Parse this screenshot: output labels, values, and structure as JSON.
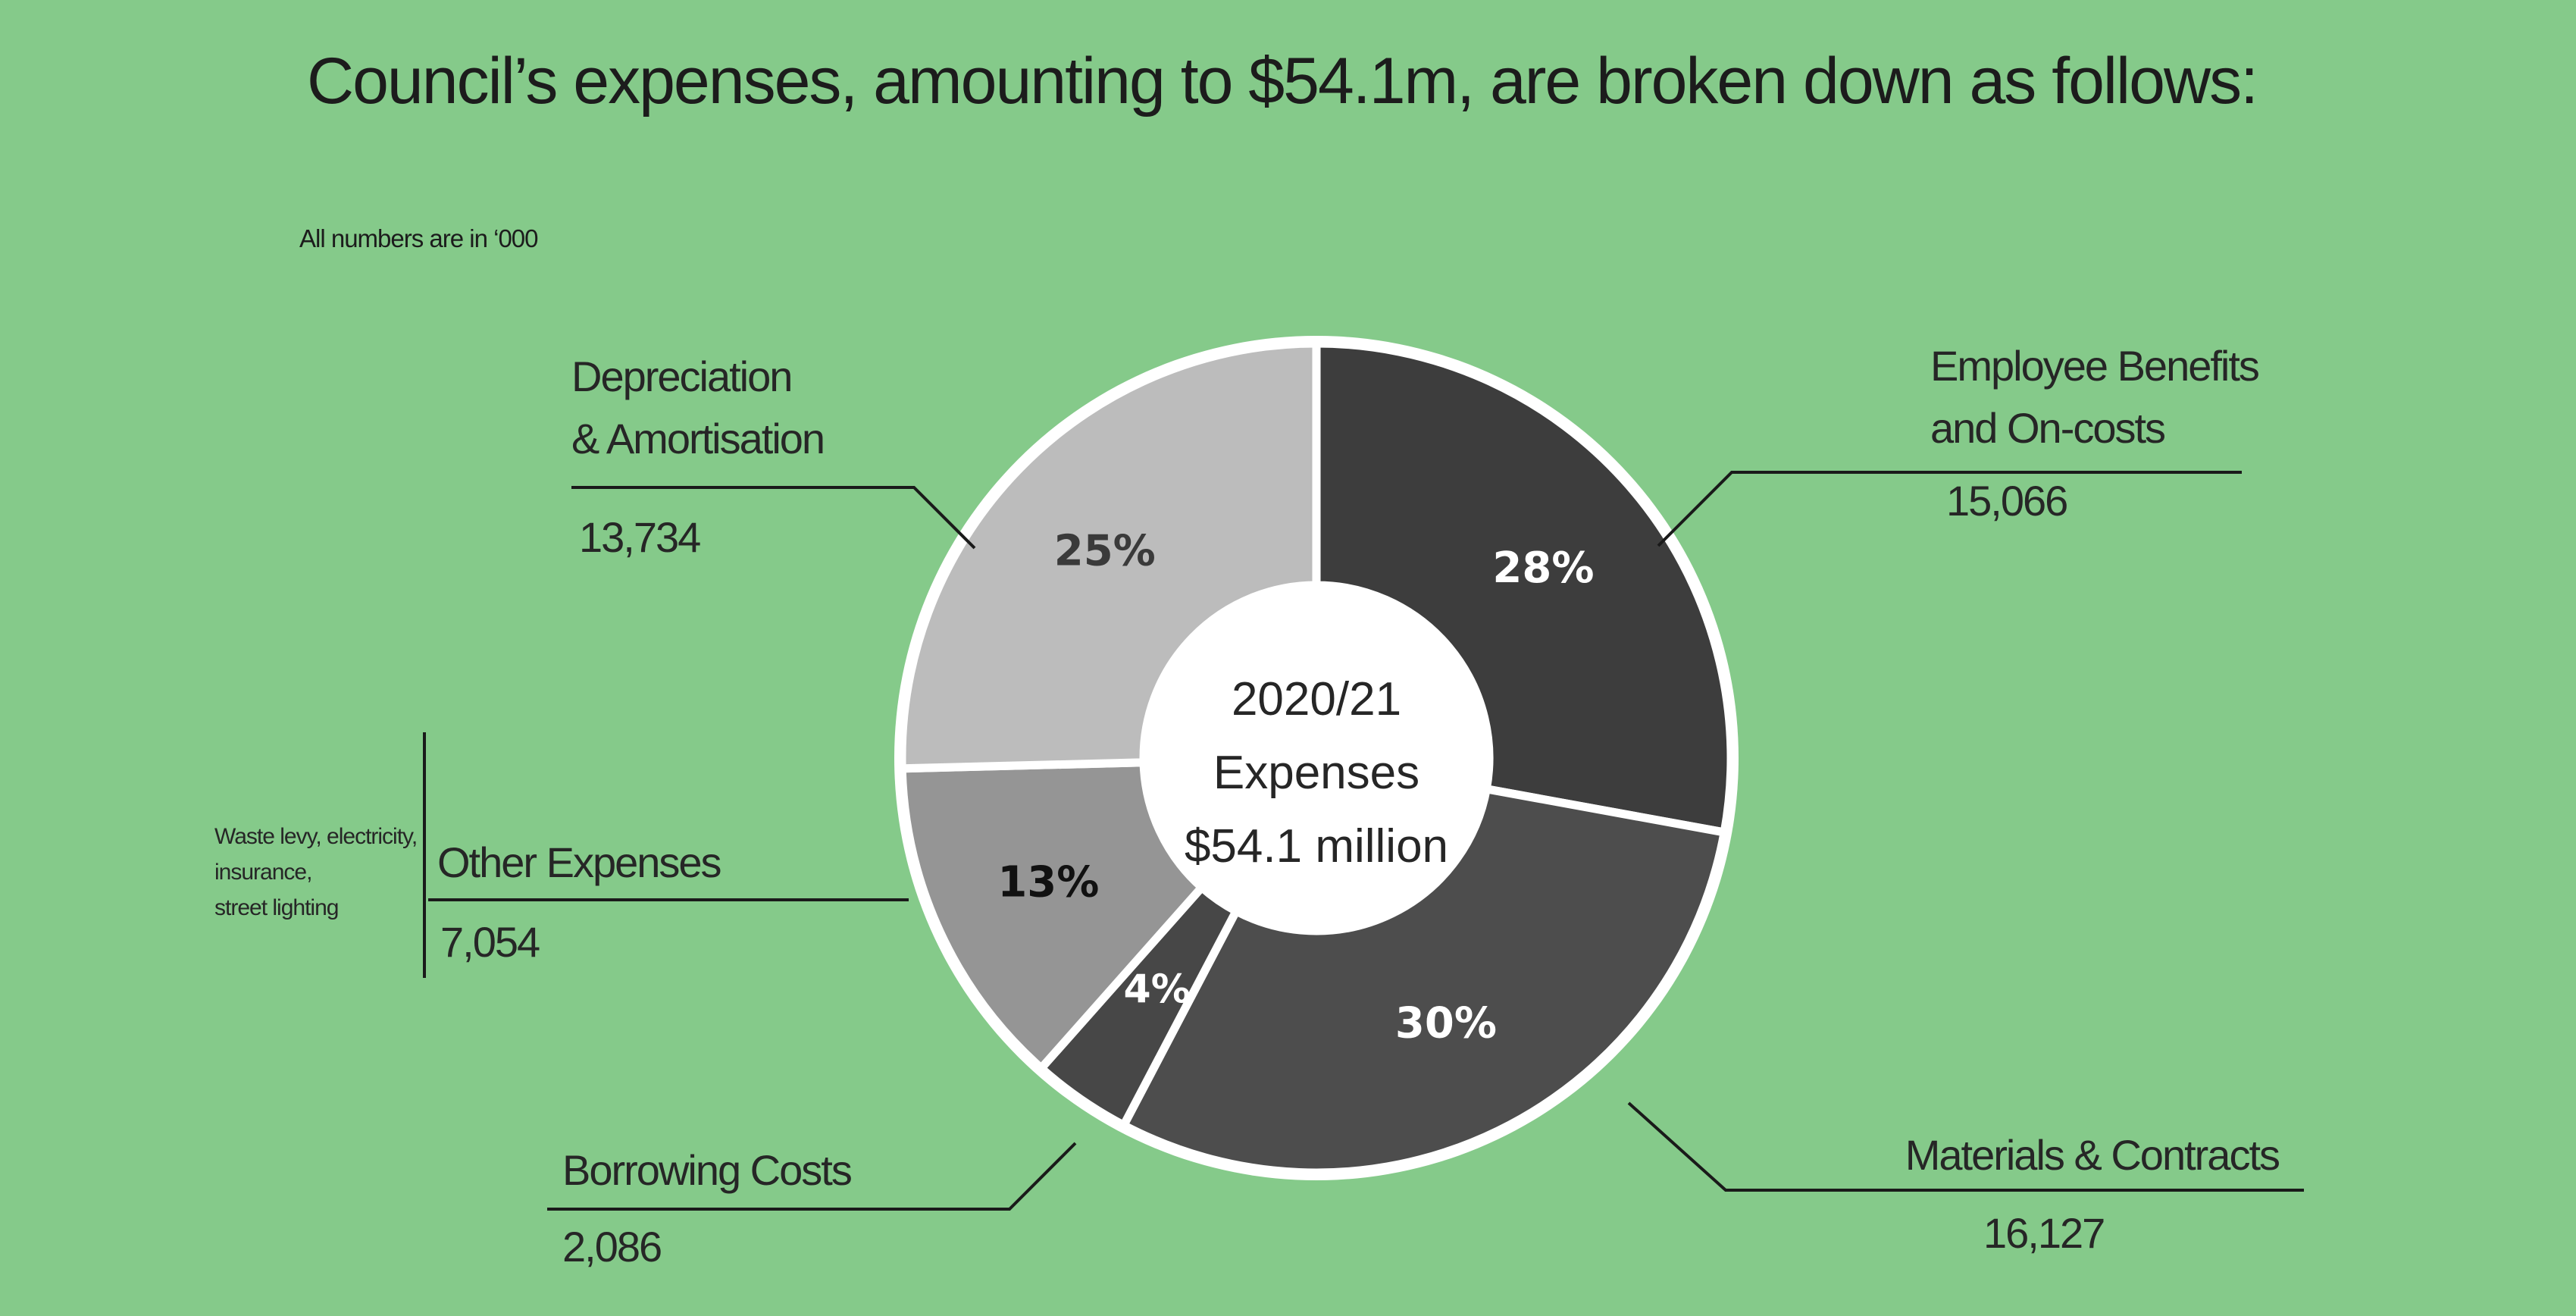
{
  "header": {
    "title": "Council’s expenses, amounting to $54.1m, are broken down as follows:",
    "units_note": "All numbers are in  ‘000"
  },
  "chart_data": {
    "type": "pie",
    "center_label": [
      "2020/21",
      "Expenses",
      "$54.1 million"
    ],
    "slices": [
      {
        "name": "Employee Benefits and On-costs",
        "label_lines": [
          "Employee Benefits",
          "and On-costs"
        ],
        "value": 15066,
        "value_text": "15,066",
        "percent_text": "28%",
        "color": "#3d3d3d",
        "pct_color": "#ffffff"
      },
      {
        "name": "Materials & Contracts",
        "label_lines": [
          "Materials & Contracts"
        ],
        "value": 16127,
        "value_text": "16,127",
        "percent_text": "30%",
        "color": "#4d4d4d",
        "pct_color": "#ffffff"
      },
      {
        "name": "Borrowing Costs",
        "label_lines": [
          "Borrowing Costs"
        ],
        "value": 2086,
        "value_text": "2,086",
        "percent_text": "4%",
        "color": "#474747",
        "pct_color": "#ffffff"
      },
      {
        "name": "Other Expenses",
        "label_lines": [
          "Other Expenses"
        ],
        "value": 7054,
        "value_text": "7,054",
        "percent_text": "13%",
        "color": "#959595",
        "pct_color": "#111111"
      },
      {
        "name": "Depreciation & Amortisation",
        "label_lines": [
          "Depreciation",
          "& Amortisation"
        ],
        "value": 13734,
        "value_text": "13,734",
        "percent_text": "25%",
        "color": "#bcbcbc",
        "pct_color": "#3a3a3a"
      }
    ],
    "side_note": [
      "Waste levy, electricity,",
      "insurance,",
      "street lighting"
    ]
  }
}
